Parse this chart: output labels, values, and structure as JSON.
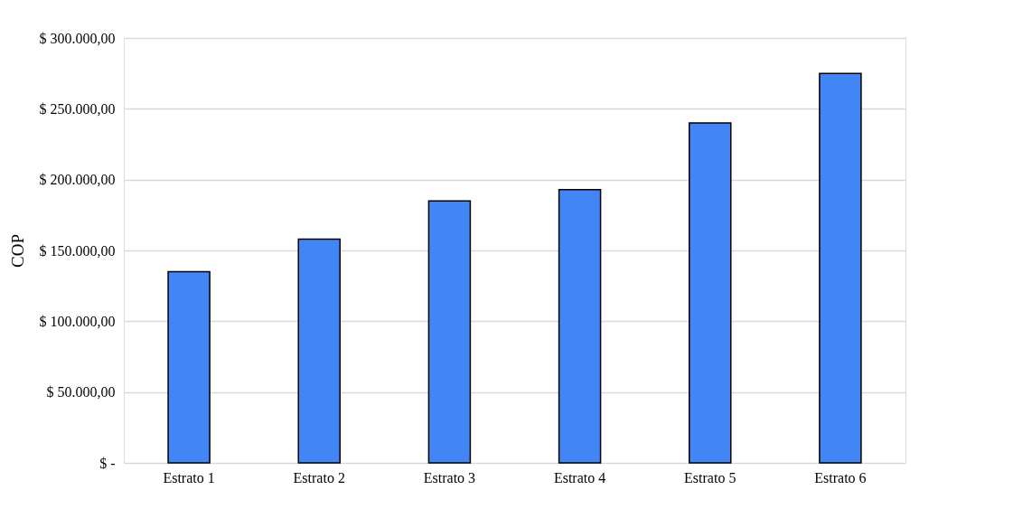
{
  "chart_data": {
    "type": "bar",
    "ylabel": "COP",
    "categories": [
      "Estrato 1",
      "Estrato 2",
      "Estrato 3",
      "Estrato 4",
      "Estrato 5",
      "Estrato 6"
    ],
    "values": [
      135000,
      158000,
      185000,
      193000,
      240000,
      275000
    ],
    "color": "#4285f4",
    "ylim": [
      0,
      300000
    ],
    "yticks": [
      {
        "value": 0,
        "label": "$ -"
      },
      {
        "value": 50000,
        "label": "$ 50.000,00"
      },
      {
        "value": 100000,
        "label": "$ 100.000,00"
      },
      {
        "value": 150000,
        "label": "$ 150.000,00"
      },
      {
        "value": 200000,
        "label": "$ 200.000,00"
      },
      {
        "value": 250000,
        "label": "$ 250.000,00"
      },
      {
        "value": 300000,
        "label": "$ 300.000,00"
      }
    ],
    "grid": "y",
    "legend": false
  }
}
